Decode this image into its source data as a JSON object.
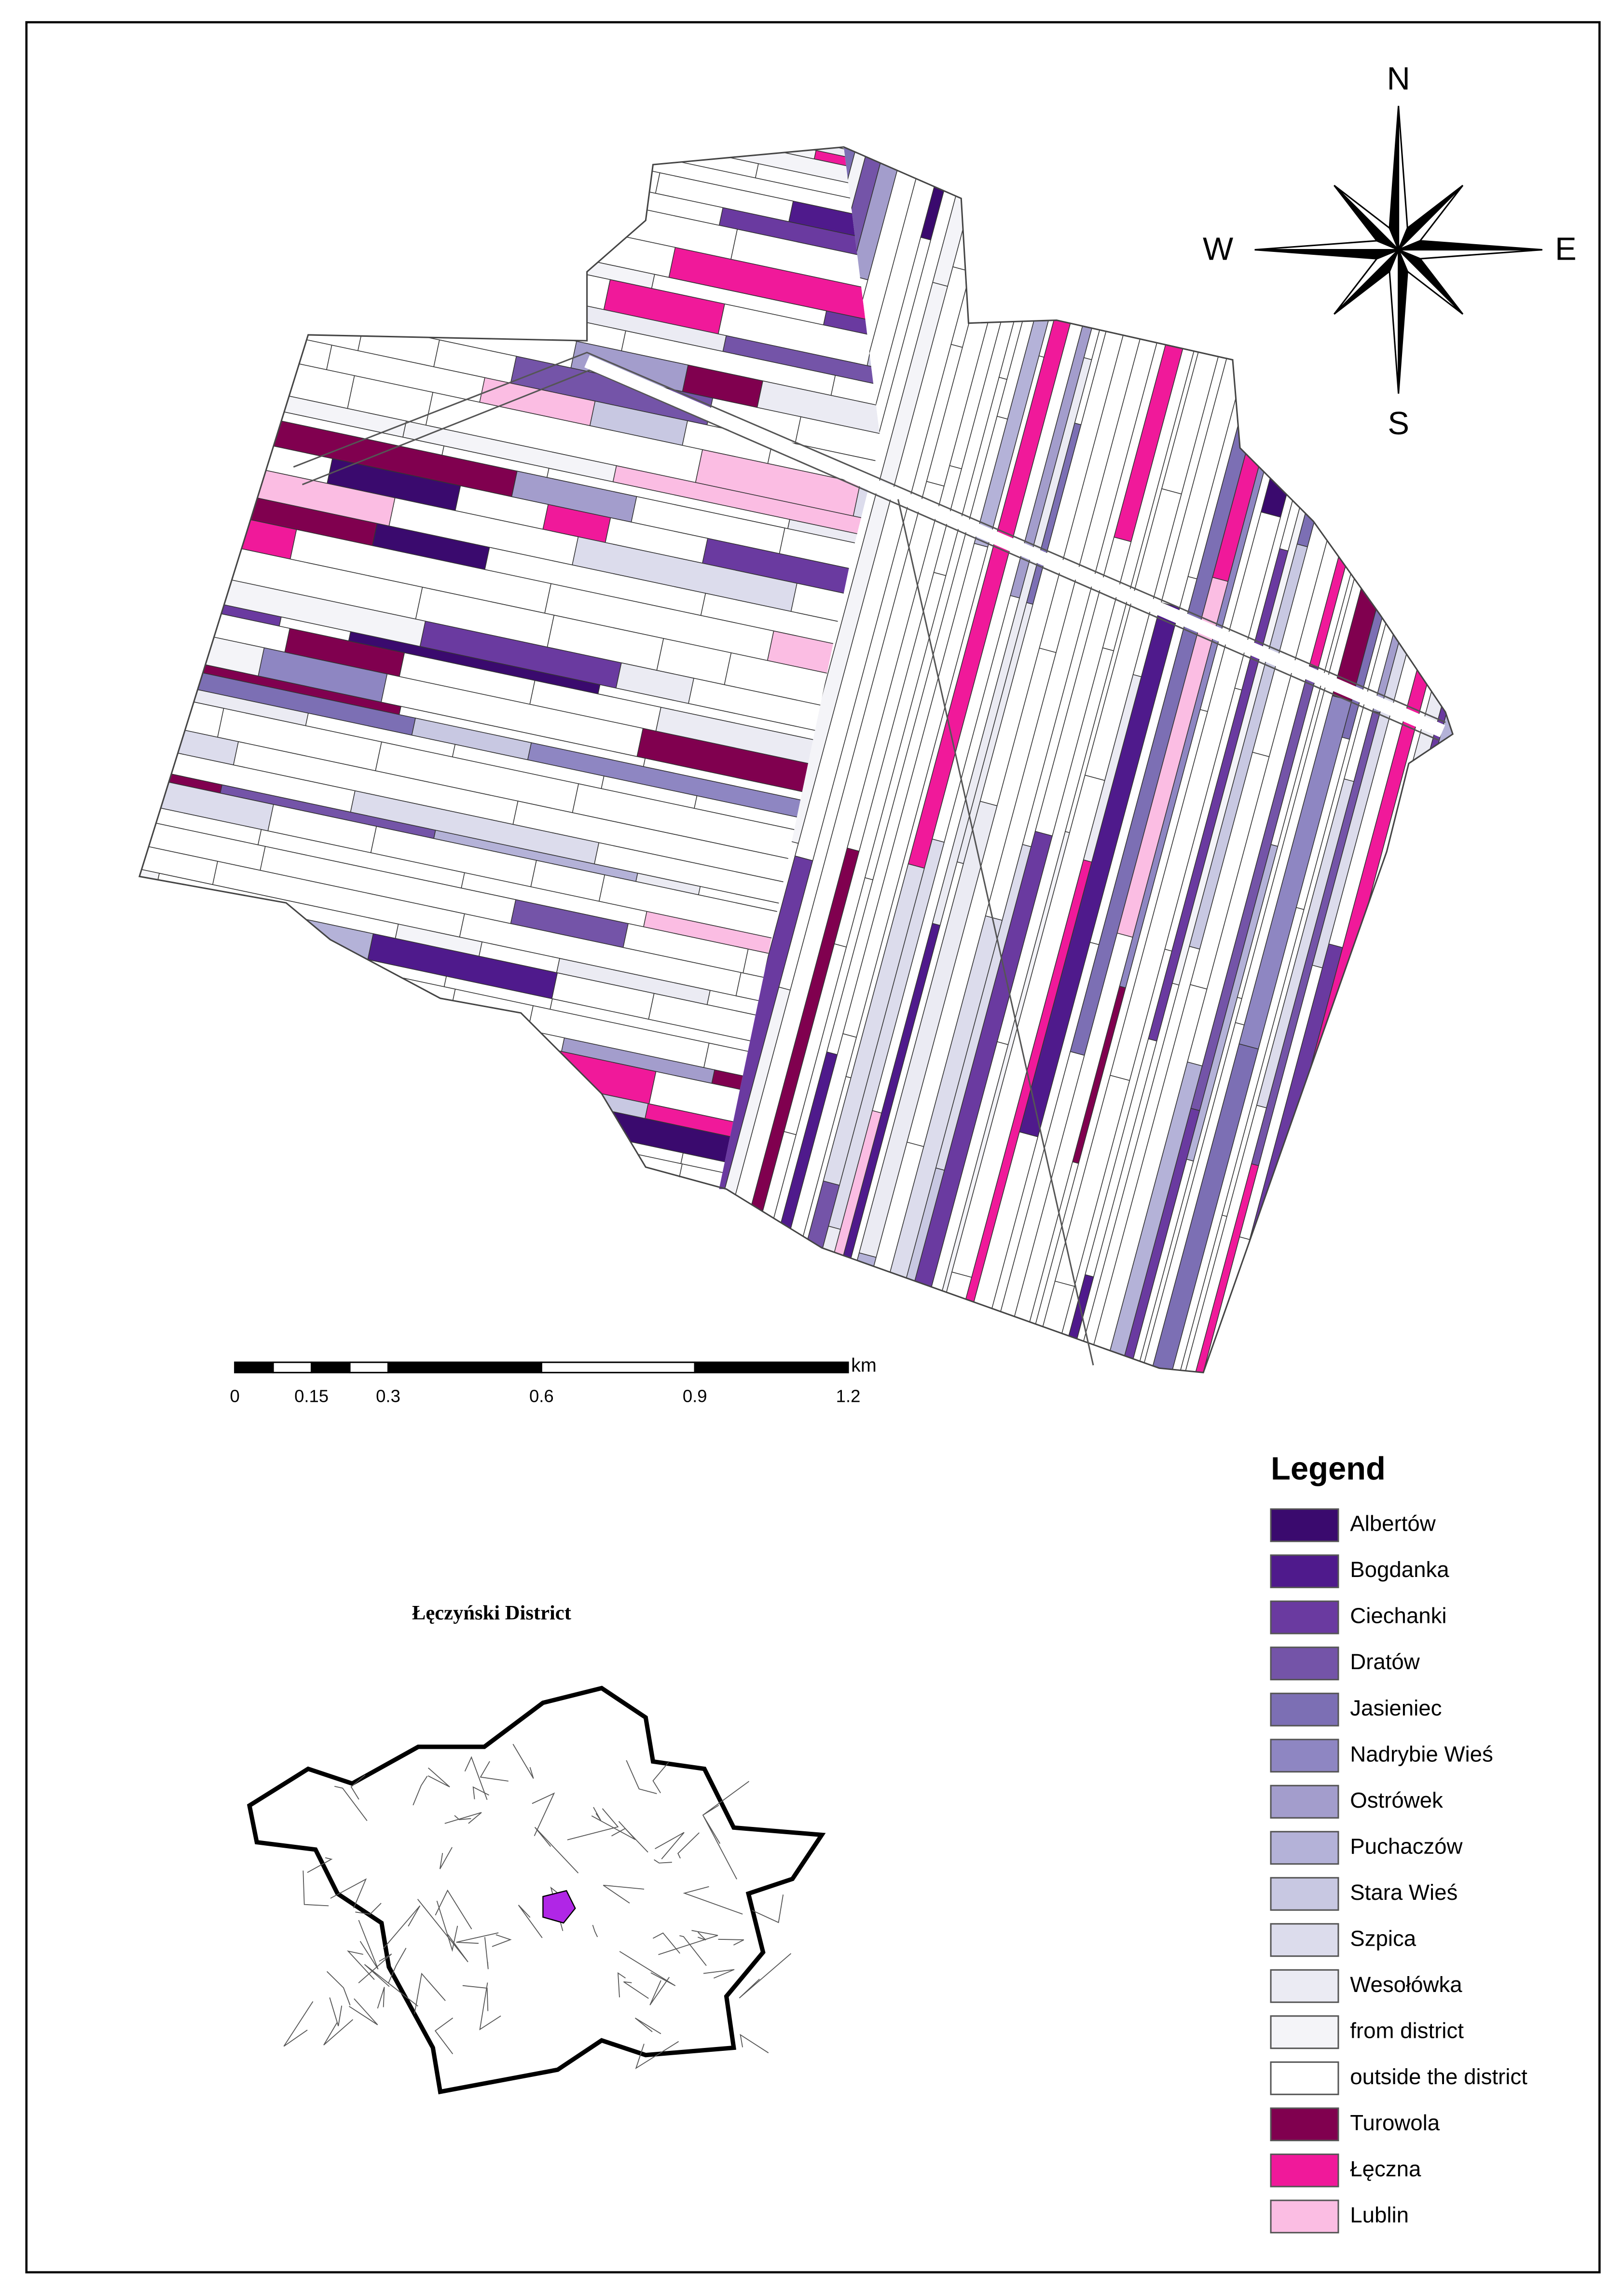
{
  "compass": {
    "north": "N",
    "east": "E",
    "south": "S",
    "west": "W"
  },
  "scale_bar": {
    "unit": "km",
    "ticks": [
      0,
      0.15,
      0.3,
      0.6,
      0.9,
      1.2
    ]
  },
  "inset": {
    "title": "Łęczyński District"
  },
  "legend": {
    "title": "Legend",
    "items": [
      {
        "label": "Albertów",
        "color": "#3a0a6e"
      },
      {
        "label": "Bogdanka",
        "color": "#4f1a8c"
      },
      {
        "label": "Ciechanki",
        "color": "#6a3aa0"
      },
      {
        "label": "Dratów",
        "color": "#7454a8"
      },
      {
        "label": "Jasieniec",
        "color": "#7c6fb4"
      },
      {
        "label": "Nadrybie Wieś",
        "color": "#8e86c2"
      },
      {
        "label": "Ostrówek",
        "color": "#a39dcc"
      },
      {
        "label": "Puchaczów",
        "color": "#b4b2d8"
      },
      {
        "label": "Stara Wieś",
        "color": "#c8c8e2"
      },
      {
        "label": "Szpica",
        "color": "#dcdcec"
      },
      {
        "label": "Wesołówka",
        "color": "#ebebf3"
      },
      {
        "label": "from district",
        "color": "#f4f4f8"
      },
      {
        "label": "outside the district",
        "color": "#ffffff"
      },
      {
        "label": "Turowola",
        "color": "#80004f"
      },
      {
        "label": "Łęczna",
        "color": "#f0199a"
      },
      {
        "label": "Lublin",
        "color": "#fbbde3"
      }
    ]
  }
}
